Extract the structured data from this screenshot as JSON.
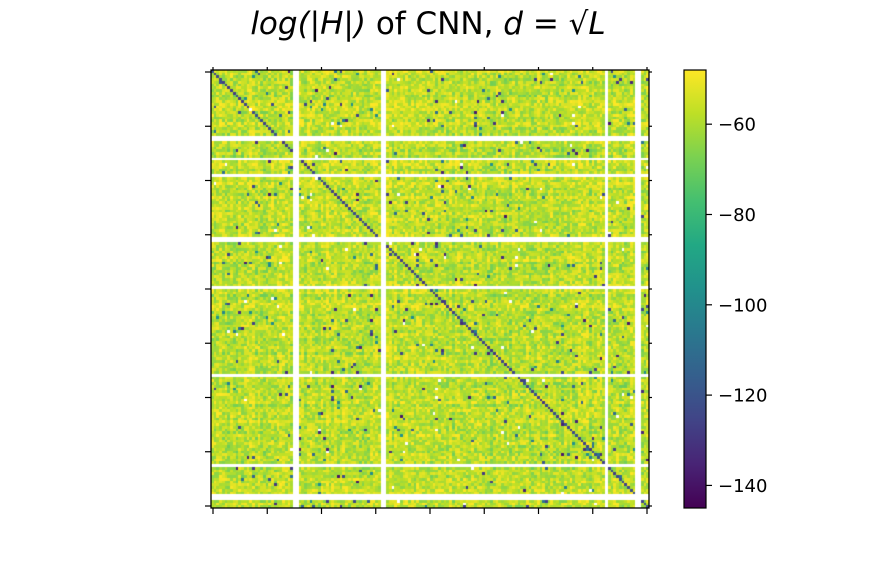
{
  "chart_data": {
    "type": "heatmap",
    "title": {
      "prefix": "log(|H|)",
      "middle": " of CNN, ",
      "suffix": "d = √L"
    },
    "xlabel": "",
    "ylabel": "",
    "matrix_size": 160,
    "value_range": [
      -145,
      -48
    ],
    "background_value_range": [
      -66,
      -49
    ],
    "diagonal_value": -125,
    "sparse_low_value_range": [
      -140,
      -95
    ],
    "colorbar": {
      "colormap": "viridis",
      "range": [
        -145,
        -48
      ],
      "ticks": [
        -60,
        -80,
        -100,
        -120,
        -140
      ],
      "tick_labels": [
        "−60",
        "−80",
        "−100",
        "−120",
        "−140"
      ]
    },
    "x_tick_count": 9,
    "y_tick_count": 9,
    "x_tick_labels": [],
    "y_tick_labels": [],
    "blank_rows": [
      24,
      25,
      32,
      38,
      61,
      62,
      79,
      111,
      144,
      155,
      156
    ],
    "blank_cols": [
      30,
      31,
      62,
      63,
      144,
      155,
      156
    ]
  }
}
